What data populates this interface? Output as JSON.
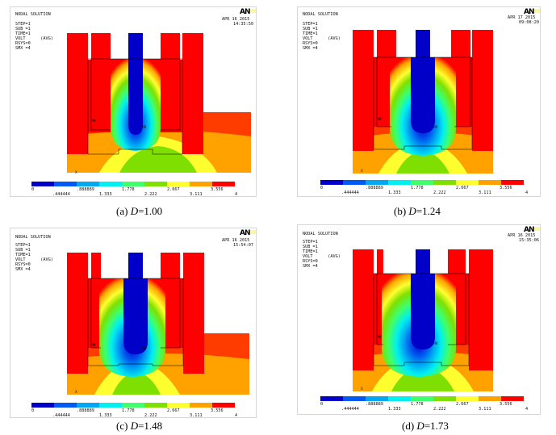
{
  "colors": {
    "c0": "#0000c8",
    "c1": "#0059f0",
    "c2": "#00a8f2",
    "c3": "#00f0f0",
    "c4": "#3fff6a",
    "c5": "#7fe000",
    "c6": "#ffff30",
    "c7": "#ffa200",
    "c8": "#ff3c00",
    "c9": "#ff0000"
  },
  "legend_values": [
    "0",
    ".444444",
    ".888889",
    "1.333",
    "1.778",
    "2.222",
    "2.667",
    "3.111",
    "3.556",
    "4"
  ],
  "panels": [
    {
      "info": [
        "NODAL SOLUTION",
        "",
        "STEP=1",
        "SUB =1",
        "TIME=1",
        "VOLT      (AVG)",
        "RSYS=0",
        "SMX =4"
      ],
      "date": "APR 16 2015",
      "time": "14:35:50",
      "logo": "AN",
      "node_label": "MN",
      "node_label2": "MX",
      "axis": "X",
      "caption_prefix": "(a)",
      "caption_var": "D",
      "caption_value": "=1.00"
    },
    {
      "info": [
        "NODAL SOLUTION",
        "",
        "STEP=1",
        "SUB =1",
        "TIME=1",
        "VOLT      (AVG)",
        "RSYS=0",
        "SMX =4"
      ],
      "date": "APR 17 2015",
      "time": "09:08:20",
      "logo": "AN",
      "node_label": "MN",
      "node_label2": "MX",
      "axis": "X",
      "caption_prefix": "(b)",
      "caption_var": "D",
      "caption_value": "=1.24"
    },
    {
      "info": [
        "NODAL SOLUTION",
        "",
        "STEP=1",
        "SUB =1",
        "TIME=1",
        "VOLT      (AVG)",
        "RSYS=0",
        "SMX =4"
      ],
      "date": "APR 16 2015",
      "time": "15:54:07",
      "logo": "AN",
      "node_label": "MN",
      "node_label2": "MX",
      "axis": "X",
      "caption_prefix": "(c)",
      "caption_var": "D",
      "caption_value": "=1.48"
    },
    {
      "info": [
        "NODAL SOLUTION",
        "",
        "STEP=1",
        "SUB =1",
        "TIME=1",
        "VOLT      (AVG)",
        "RSYS=0",
        "SMX =4"
      ],
      "date": "APR 16 2015",
      "time": "15:35:06",
      "logo": "AN",
      "node_label": "MN",
      "node_label2": "MX",
      "axis": "X",
      "caption_prefix": "(d)",
      "caption_var": "D",
      "caption_value": "=1.73"
    }
  ]
}
